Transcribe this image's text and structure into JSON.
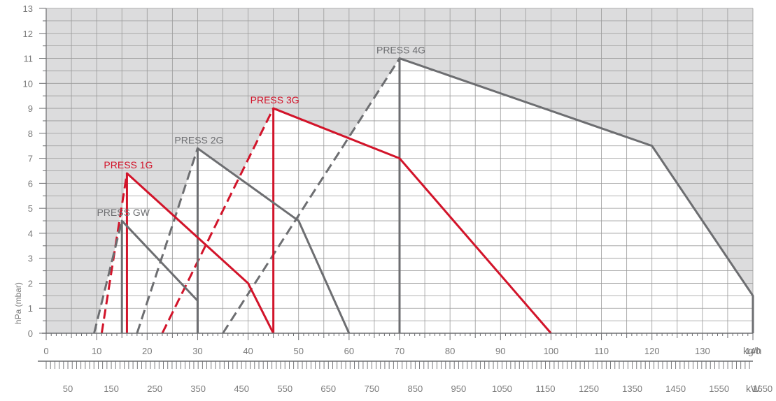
{
  "chart_data": {
    "type": "line",
    "ylabel": "hPa (mbar)",
    "xunit": "kg/h",
    "x2unit": "kW",
    "xlim": [
      0,
      140
    ],
    "ylim": [
      0,
      13
    ],
    "x_ticks": [
      0,
      10,
      20,
      30,
      40,
      50,
      60,
      70,
      80,
      90,
      100,
      110,
      120,
      130,
      140
    ],
    "y_ticks": [
      0,
      1,
      2,
      3,
      4,
      5,
      6,
      7,
      8,
      9,
      10,
      11,
      12,
      13
    ],
    "x2_ticks": [
      {
        "label": "50",
        "x": 4.3
      },
      {
        "label": "150",
        "x": 12.9
      },
      {
        "label": "250",
        "x": 21.5
      },
      {
        "label": "350",
        "x": 30.1
      },
      {
        "label": "450",
        "x": 38.7
      },
      {
        "label": "550",
        "x": 47.3
      },
      {
        "label": "650",
        "x": 55.9
      },
      {
        "label": "750",
        "x": 64.5
      },
      {
        "label": "850",
        "x": 73.1
      },
      {
        "label": "950",
        "x": 81.7
      },
      {
        "label": "1050",
        "x": 90.3
      },
      {
        "label": "1150",
        "x": 98.9
      },
      {
        "label": "1250",
        "x": 107.5
      },
      {
        "label": "1350",
        "x": 116.1
      },
      {
        "label": "1450",
        "x": 124.7
      },
      {
        "label": "1550",
        "x": 133.3
      },
      {
        "label": "1650",
        "x": 141.9
      }
    ],
    "colors": {
      "grey": "#6d6e71",
      "red": "#d2142a",
      "shade": "#dcdcdd",
      "grid": "#9a9a9a"
    },
    "series": [
      {
        "name": "PRESS 4G",
        "color": "grey",
        "label_at": [
          70,
          11
        ],
        "curve": [
          [
            70,
            0
          ],
          [
            70,
            11
          ],
          [
            120,
            7.5
          ],
          [
            140,
            1.5
          ],
          [
            140,
            0
          ]
        ],
        "dashed": [
          [
            35,
            0
          ],
          [
            70,
            11
          ]
        ]
      },
      {
        "name": "PRESS 3G",
        "color": "red",
        "label_at": [
          45,
          9
        ],
        "curve": [
          [
            45,
            0
          ],
          [
            45,
            9
          ],
          [
            70,
            7
          ],
          [
            100,
            0
          ]
        ],
        "dashed": [
          [
            23,
            0
          ],
          [
            45,
            9
          ]
        ]
      },
      {
        "name": "PRESS 2G",
        "color": "grey",
        "label_at": [
          30,
          7.4
        ],
        "curve": [
          [
            30,
            0
          ],
          [
            30,
            7.4
          ],
          [
            50,
            4.5
          ],
          [
            60,
            0
          ]
        ],
        "dashed": [
          [
            18,
            0
          ],
          [
            30,
            7.4
          ]
        ]
      },
      {
        "name": "PRESS 1G",
        "color": "red",
        "label_at": [
          16,
          6.4
        ],
        "curve": [
          [
            16,
            0
          ],
          [
            16,
            6.4
          ],
          [
            40,
            2
          ],
          [
            45,
            0
          ]
        ],
        "dashed": [
          [
            11,
            0
          ],
          [
            16,
            6.4
          ]
        ]
      },
      {
        "name": "PRESS GW",
        "color": "grey",
        "label_at": [
          15,
          4.5
        ],
        "curve": [
          [
            15,
            0
          ],
          [
            15,
            4.5
          ],
          [
            30,
            1.3
          ],
          [
            30,
            0
          ]
        ],
        "dashed": [
          [
            9.5,
            0
          ],
          [
            15,
            4.5
          ]
        ]
      }
    ]
  }
}
